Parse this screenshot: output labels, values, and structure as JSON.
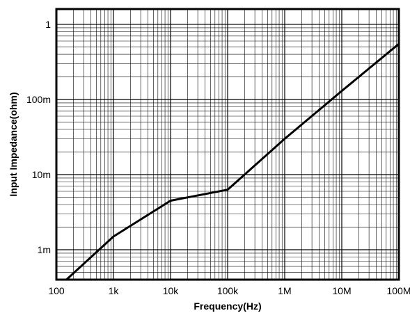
{
  "chart_data": {
    "type": "line",
    "xlabel": "Frequency(Hz)",
    "ylabel": "Input Impedance(ohm)",
    "x_scale": "log",
    "y_scale": "log",
    "xlim": [
      100,
      100000000
    ],
    "ylim": [
      0.0004,
      1.6
    ],
    "x_ticks": [
      {
        "value": 100,
        "label": "100"
      },
      {
        "value": 1000,
        "label": "1k"
      },
      {
        "value": 10000,
        "label": "10k"
      },
      {
        "value": 100000,
        "label": "100k"
      },
      {
        "value": 1000000,
        "label": "1M"
      },
      {
        "value": 10000000,
        "label": "10M"
      },
      {
        "value": 100000000,
        "label": "100M"
      }
    ],
    "y_ticks": [
      {
        "value": 0.001,
        "label": "1m"
      },
      {
        "value": 0.01,
        "label": "10m"
      },
      {
        "value": 0.1,
        "label": "100m"
      },
      {
        "value": 1,
        "label": "1"
      }
    ],
    "grid": true,
    "series": [
      {
        "color": "#000000",
        "points": [
          {
            "x": 150,
            "y": 0.0004
          },
          {
            "x": 1000,
            "y": 0.0015
          },
          {
            "x": 10000,
            "y": 0.0045
          },
          {
            "x": 100000,
            "y": 0.0063
          },
          {
            "x": 1000000,
            "y": 0.03
          },
          {
            "x": 10000000,
            "y": 0.13
          },
          {
            "x": 100000000,
            "y": 0.55
          }
        ]
      }
    ]
  }
}
